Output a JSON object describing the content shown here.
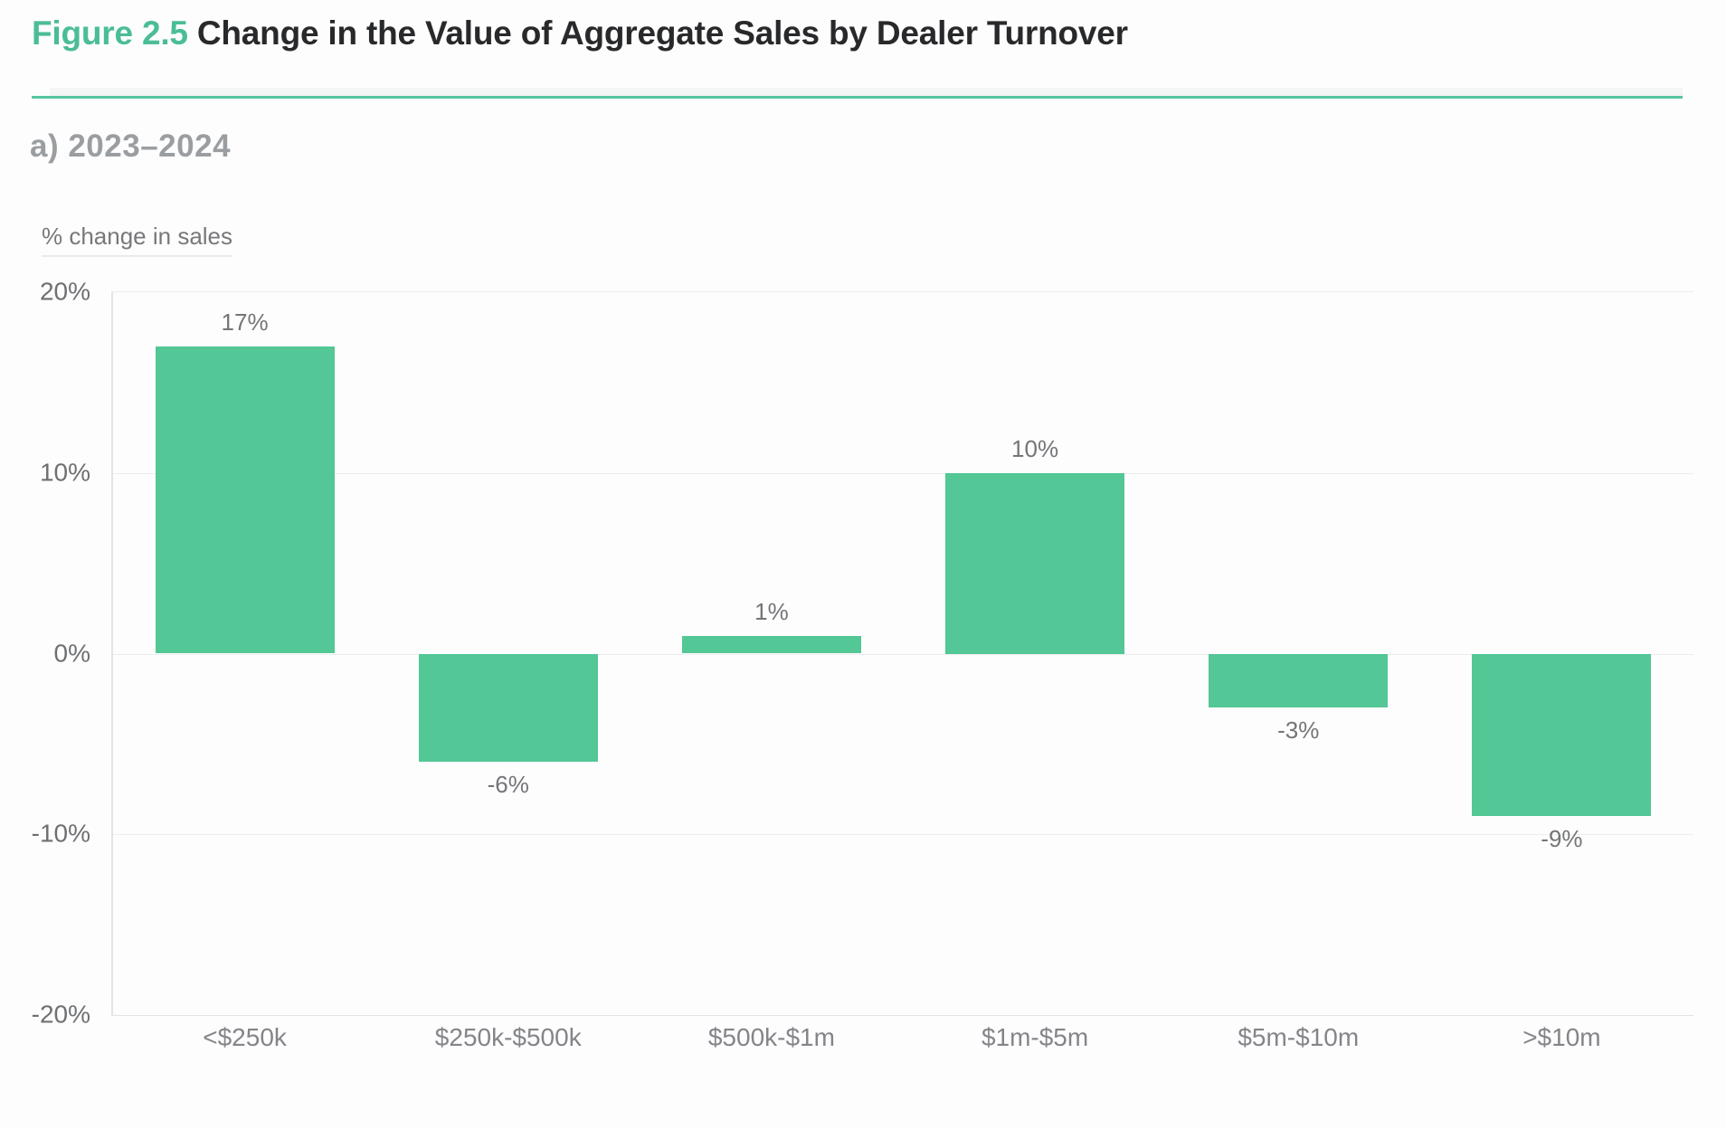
{
  "figure": {
    "label": "Figure 2.5",
    "title": "Change in the Value of Aggregate Sales by Dealer Turnover",
    "panel_label": "a) 2023–2024"
  },
  "chart_data": {
    "type": "bar",
    "title": "Change in the Value of Aggregate Sales by Dealer Turnover",
    "subtitle": "a) 2023–2024",
    "axis_title": "% change in sales",
    "xlabel": "",
    "ylabel": "% change in sales",
    "categories": [
      "<$250k",
      "$250k-$500k",
      "$500k-$1m",
      "$1m-$5m",
      "$5m-$10m",
      ">$10m"
    ],
    "values": [
      17,
      -6,
      1,
      10,
      -3,
      -9
    ],
    "value_labels": [
      "17%",
      "-6%",
      "1%",
      "10%",
      "-3%",
      "-9%"
    ],
    "y_ticks": [
      {
        "value": 20,
        "label": "20%"
      },
      {
        "value": 10,
        "label": "10%"
      },
      {
        "value": 0,
        "label": "0%"
      },
      {
        "value": -10,
        "label": "-10%"
      },
      {
        "value": -20,
        "label": "-20%"
      }
    ],
    "ylim": [
      -20,
      20
    ],
    "grid": true,
    "legend": false,
    "bar_color": "#53c795"
  },
  "colors": {
    "accent": "#4abd97",
    "divider": "#57c5a0",
    "bar": "#53c795",
    "title_text": "#28292b",
    "panel_text": "#9b9ea1",
    "axis_text": "#6e7072",
    "gridline": "#ededee"
  }
}
